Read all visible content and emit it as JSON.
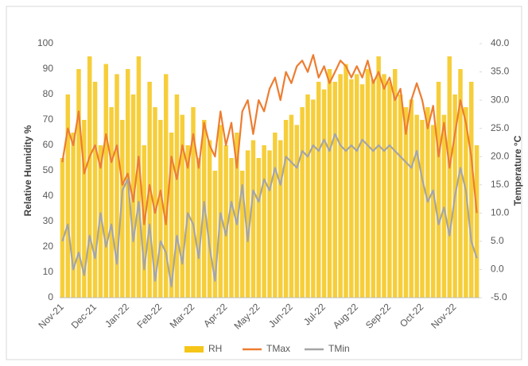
{
  "chart_data": {
    "type": "combo",
    "y_label": "Relative Humidity %",
    "y2_label": "Temperature °C",
    "categories": [
      "Nov-21",
      null,
      null,
      null,
      null,
      null,
      "Dec-21",
      null,
      null,
      null,
      null,
      null,
      "Jan-22",
      null,
      null,
      null,
      null,
      null,
      "Feb-22",
      null,
      null,
      null,
      null,
      null,
      "Mar-22",
      null,
      null,
      null,
      null,
      null,
      "Apr-22",
      null,
      null,
      null,
      null,
      null,
      "May-22",
      null,
      null,
      null,
      null,
      null,
      "Jun-22",
      null,
      null,
      null,
      null,
      null,
      "Jul-22",
      null,
      null,
      null,
      null,
      null,
      "Aug-22",
      null,
      null,
      null,
      null,
      null,
      "Sep-22",
      null,
      null,
      null,
      null,
      null,
      "Oct-22",
      null,
      null,
      null,
      null,
      null,
      "Nov-22",
      null,
      null,
      null,
      null
    ],
    "series": [
      {
        "name": "RH",
        "type": "bar",
        "axis": "y",
        "color": "#f5c518",
        "values": [
          55,
          80,
          65,
          90,
          70,
          95,
          85,
          60,
          92,
          75,
          88,
          70,
          90,
          80,
          95,
          60,
          85,
          75,
          70,
          88,
          65,
          80,
          72,
          60,
          75,
          55,
          70,
          62,
          50,
          68,
          60,
          55,
          65,
          50,
          58,
          62,
          55,
          60,
          58,
          65,
          62,
          70,
          72,
          68,
          75,
          80,
          78,
          85,
          82,
          90,
          85,
          88,
          92,
          86,
          88,
          84,
          90,
          86,
          95,
          88,
          85,
          90,
          80,
          75,
          78,
          72,
          70,
          75,
          68,
          85,
          72,
          95,
          80,
          90,
          75,
          85,
          60
        ]
      },
      {
        "name": "TMax",
        "type": "line",
        "axis": "y2",
        "color": "#ed7d31",
        "values": [
          19,
          25,
          22,
          28,
          17,
          20,
          22,
          18,
          24,
          19,
          22,
          15,
          17,
          12,
          20,
          8,
          15,
          10,
          14,
          8,
          20,
          16,
          22,
          18,
          24,
          18,
          26,
          22,
          20,
          28,
          22,
          26,
          18,
          28,
          30,
          24,
          30,
          28,
          32,
          34,
          30,
          35,
          33,
          36,
          37,
          35,
          38,
          34,
          36,
          33,
          35,
          37,
          36,
          34,
          36,
          34,
          37,
          33,
          35,
          32,
          34,
          30,
          32,
          24,
          30,
          33,
          30,
          25,
          29,
          20,
          26,
          18,
          24,
          30,
          26,
          20,
          10
        ]
      },
      {
        "name": "TMin",
        "type": "line",
        "axis": "y2",
        "color": "#a5a5a5",
        "values": [
          5,
          8,
          0,
          3,
          -1,
          6,
          2,
          10,
          4,
          8,
          1,
          14,
          16,
          5,
          12,
          0,
          8,
          -2,
          5,
          3,
          -3,
          6,
          1,
          10,
          8,
          2,
          12,
          4,
          -2,
          10,
          6,
          12,
          8,
          15,
          5,
          14,
          12,
          16,
          14,
          18,
          15,
          20,
          19,
          18,
          21,
          20,
          22,
          21,
          23,
          21,
          24,
          22,
          21,
          22,
          21,
          23,
          22,
          21,
          22,
          21,
          22,
          21,
          20,
          19,
          18,
          21,
          16,
          12,
          14,
          8,
          11,
          6,
          13,
          18,
          14,
          5,
          2
        ]
      }
    ],
    "ylim": [
      0,
      100
    ],
    "yticks": [
      0,
      10,
      20,
      30,
      40,
      50,
      60,
      70,
      80,
      90,
      100
    ],
    "y2lim": [
      -5,
      40
    ],
    "y2ticks": [
      {
        "value": -5,
        "label": "-5.0"
      },
      {
        "value": 0,
        "label": "0.0"
      },
      {
        "value": 5,
        "label": "5.0"
      },
      {
        "value": 10,
        "label": "10.0"
      },
      {
        "value": 15,
        "label": "15.0"
      },
      {
        "value": 20,
        "label": "20.0"
      },
      {
        "value": 25,
        "label": "25.0"
      },
      {
        "value": 30,
        "label": "30.0"
      },
      {
        "value": 35,
        "label": "35.0"
      },
      {
        "value": 40,
        "label": "40.0"
      }
    ],
    "legend": "bottom"
  }
}
